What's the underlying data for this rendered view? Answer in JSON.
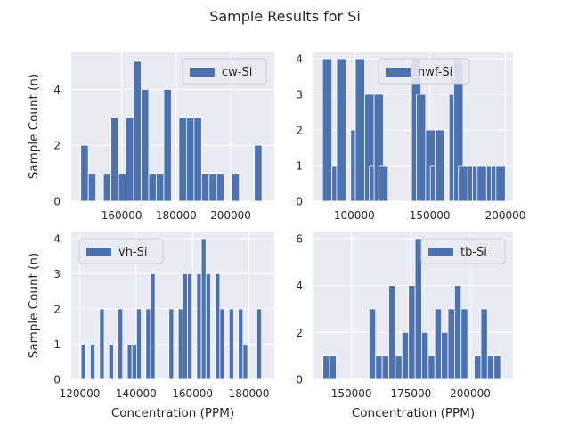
{
  "figure": {
    "title": "Sample Results for Si",
    "colors": {
      "bar": "#4c72b0",
      "axes_bg": "#eaeaf2",
      "grid": "#ffffff",
      "text": "#262626"
    }
  },
  "chart_data": [
    {
      "type": "bar",
      "legend": "cw-Si",
      "legend_position": "upper-right",
      "ylabel": "Sample Count (n)",
      "xlabel": "",
      "bin_width": 2770,
      "xlim": [
        141500,
        216000
      ],
      "ylim": [
        0,
        5.35
      ],
      "xticks": [
        160000,
        180000,
        200000
      ],
      "xtick_labels": [
        "160000",
        "180000",
        "200000"
      ],
      "yticks": [
        0,
        2,
        4
      ],
      "ytick_labels": [
        "0",
        "2",
        "4"
      ],
      "bins": [
        {
          "x": 145000,
          "count": 2
        },
        {
          "x": 147770,
          "count": 1
        },
        {
          "x": 153310,
          "count": 1
        },
        {
          "x": 156080,
          "count": 3
        },
        {
          "x": 158850,
          "count": 1
        },
        {
          "x": 161620,
          "count": 3
        },
        {
          "x": 164390,
          "count": 5
        },
        {
          "x": 167160,
          "count": 4
        },
        {
          "x": 169930,
          "count": 1
        },
        {
          "x": 172700,
          "count": 1
        },
        {
          "x": 175470,
          "count": 4
        },
        {
          "x": 181010,
          "count": 3
        },
        {
          "x": 183780,
          "count": 3
        },
        {
          "x": 186550,
          "count": 3
        },
        {
          "x": 189320,
          "count": 1
        },
        {
          "x": 192090,
          "count": 1
        },
        {
          "x": 194860,
          "count": 1
        },
        {
          "x": 200400,
          "count": 1
        },
        {
          "x": 208710,
          "count": 2
        }
      ]
    },
    {
      "type": "bar",
      "legend": "nwf-Si",
      "legend_position": "upper-center",
      "ylabel": "",
      "xlabel": "",
      "bin_width": 6200,
      "xlim": [
        73000,
        205000
      ],
      "ylim": [
        0,
        4.2
      ],
      "xticks": [
        100000,
        150000,
        200000
      ],
      "xtick_labels": [
        "100000",
        "150000",
        "200000"
      ],
      "yticks": [
        0,
        1,
        2,
        3,
        4
      ],
      "ytick_labels": [
        "0",
        "1",
        "2",
        "3",
        "4"
      ],
      "bins": [
        {
          "x": 79000,
          "count": 4
        },
        {
          "x": 85200,
          "count": 1
        },
        {
          "x": 88300,
          "count": 4
        },
        {
          "x": 97600,
          "count": 2
        },
        {
          "x": 100700,
          "count": 4
        },
        {
          "x": 106900,
          "count": 3
        },
        {
          "x": 110000,
          "count": 1
        },
        {
          "x": 113100,
          "count": 3
        },
        {
          "x": 116200,
          "count": 1
        },
        {
          "x": 137900,
          "count": 4
        },
        {
          "x": 141000,
          "count": 3
        },
        {
          "x": 147200,
          "count": 2
        },
        {
          "x": 150300,
          "count": 1
        },
        {
          "x": 153400,
          "count": 2
        },
        {
          "x": 162700,
          "count": 3
        },
        {
          "x": 165800,
          "count": 4
        },
        {
          "x": 168900,
          "count": 1
        },
        {
          "x": 175100,
          "count": 1
        },
        {
          "x": 178200,
          "count": 1
        },
        {
          "x": 181300,
          "count": 1
        },
        {
          "x": 187500,
          "count": 1
        },
        {
          "x": 190600,
          "count": 1
        },
        {
          "x": 193700,
          "count": 1
        }
      ]
    },
    {
      "type": "bar",
      "legend": "vh-Si",
      "legend_position": "upper-left",
      "ylabel": "Sample Count (n)",
      "xlabel": "Concentration (PPM)",
      "bin_width": 1640,
      "xlim": [
        117000,
        189000
      ],
      "ylim": [
        0,
        4.2
      ],
      "xticks": [
        120000,
        140000,
        160000,
        180000
      ],
      "xtick_labels": [
        "120000",
        "140000",
        "160000",
        "180000"
      ],
      "yticks": [
        0,
        1,
        2,
        3,
        4
      ],
      "ytick_labels": [
        "0",
        "1",
        "2",
        "3",
        "4"
      ],
      "bins": [
        {
          "x": 120500,
          "count": 1
        },
        {
          "x": 123780,
          "count": 1
        },
        {
          "x": 127060,
          "count": 2
        },
        {
          "x": 130340,
          "count": 1
        },
        {
          "x": 133620,
          "count": 2
        },
        {
          "x": 136900,
          "count": 1
        },
        {
          "x": 138540,
          "count": 1
        },
        {
          "x": 140180,
          "count": 2
        },
        {
          "x": 143460,
          "count": 2
        },
        {
          "x": 145100,
          "count": 3
        },
        {
          "x": 151660,
          "count": 2
        },
        {
          "x": 154940,
          "count": 2
        },
        {
          "x": 156580,
          "count": 3
        },
        {
          "x": 158220,
          "count": 3
        },
        {
          "x": 161500,
          "count": 3
        },
        {
          "x": 163140,
          "count": 4
        },
        {
          "x": 164780,
          "count": 3
        },
        {
          "x": 168060,
          "count": 3
        },
        {
          "x": 169700,
          "count": 2
        },
        {
          "x": 172980,
          "count": 2
        },
        {
          "x": 176260,
          "count": 2
        },
        {
          "x": 177900,
          "count": 1
        },
        {
          "x": 182820,
          "count": 2
        }
      ]
    },
    {
      "type": "bar",
      "legend": "tb-Si",
      "legend_position": "upper-right",
      "ylabel": "",
      "xlabel": "Concentration (PPM)",
      "bin_width": 2770,
      "xlim": [
        134000,
        218000
      ],
      "ylim": [
        0,
        6.3
      ],
      "xticks": [
        150000,
        175000,
        200000
      ],
      "xtick_labels": [
        "150000",
        "175000",
        "200000"
      ],
      "yticks": [
        0,
        2,
        4,
        6
      ],
      "ytick_labels": [
        "0",
        "2",
        "4",
        "6"
      ],
      "bins": [
        {
          "x": 138000,
          "count": 1
        },
        {
          "x": 140770,
          "count": 1
        },
        {
          "x": 157390,
          "count": 3
        },
        {
          "x": 160160,
          "count": 1
        },
        {
          "x": 162930,
          "count": 1
        },
        {
          "x": 165700,
          "count": 4
        },
        {
          "x": 168470,
          "count": 1
        },
        {
          "x": 171240,
          "count": 2
        },
        {
          "x": 174010,
          "count": 4
        },
        {
          "x": 176780,
          "count": 6
        },
        {
          "x": 179550,
          "count": 2
        },
        {
          "x": 182320,
          "count": 1
        },
        {
          "x": 185090,
          "count": 3
        },
        {
          "x": 187860,
          "count": 2
        },
        {
          "x": 190630,
          "count": 3
        },
        {
          "x": 193400,
          "count": 4
        },
        {
          "x": 196170,
          "count": 3
        },
        {
          "x": 201710,
          "count": 1
        },
        {
          "x": 204480,
          "count": 3
        },
        {
          "x": 207250,
          "count": 1
        },
        {
          "x": 210020,
          "count": 1
        }
      ]
    }
  ]
}
